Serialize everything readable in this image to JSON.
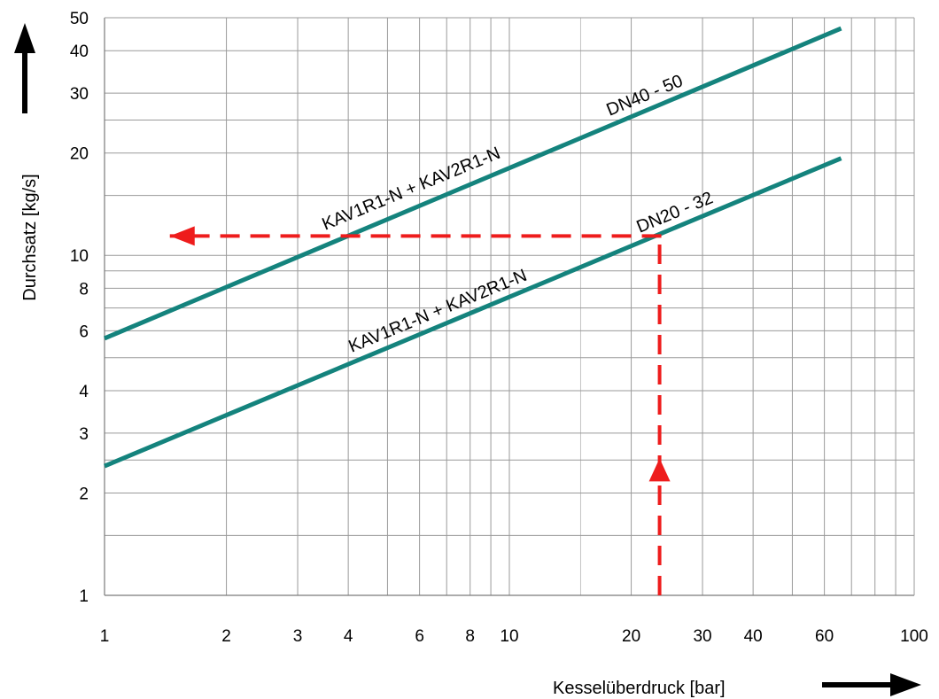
{
  "chart_data": {
    "type": "line",
    "xscale": "log",
    "yscale": "log",
    "xlabel": "Kesselüberdruck [bar]",
    "ylabel": "Durchsatz [kg/s]",
    "xlim": [
      1,
      100
    ],
    "ylim": [
      1,
      50
    ],
    "grid": true,
    "x_ticks": [
      1,
      2,
      3,
      4,
      6,
      8,
      10,
      20,
      30,
      40,
      60,
      100
    ],
    "y_ticks": [
      1,
      2,
      3,
      4,
      6,
      8,
      10,
      20,
      30,
      40,
      50
    ],
    "series": [
      {
        "name": "KAV1R1-N + KAV2R1-N",
        "size": "DN40 - 50",
        "color": "#14837d",
        "x": [
          1,
          66
        ],
        "y": [
          5.7,
          46.5
        ]
      },
      {
        "name": "KAV1R1-N + KAV2R1-N",
        "size": "DN20 - 32",
        "color": "#14837d",
        "x": [
          1,
          66
        ],
        "y": [
          2.4,
          19.3
        ]
      }
    ],
    "example_reading": {
      "color": "#ee1c1c",
      "x": 23.5,
      "y": 11.4,
      "x_from": 1.45,
      "y_from": 1
    }
  }
}
